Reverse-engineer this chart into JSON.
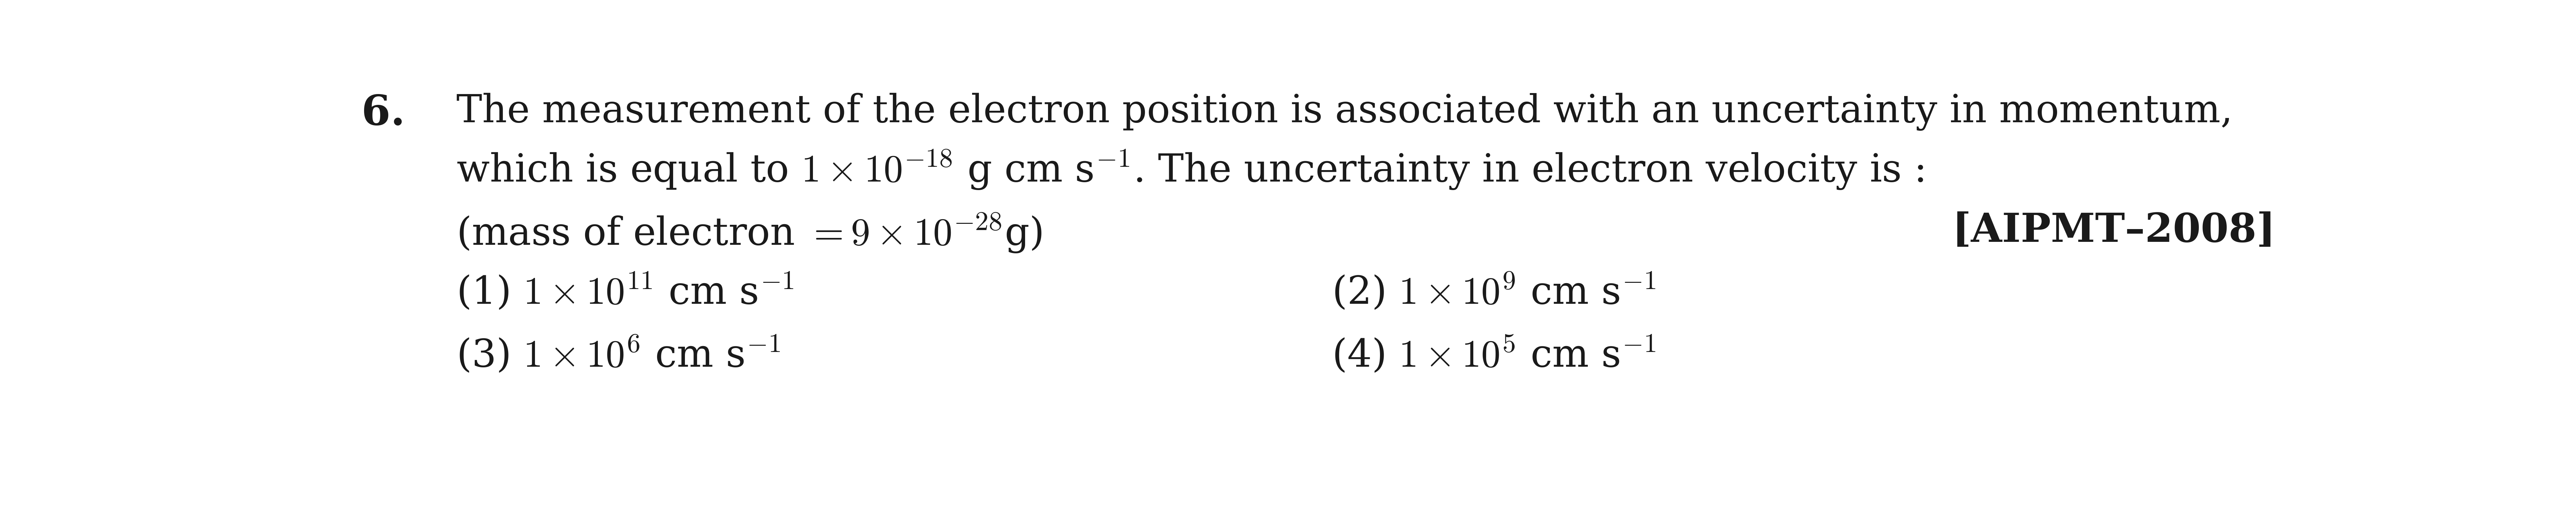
{
  "bg_color": "#ffffff",
  "text_color": "#1a1a1a",
  "question_number": "6.",
  "line1": "The measurement of the electron position is associated with an uncertainty in momentum,",
  "line2": "which is equal to $1\\times 10^{-18}$ g cm s$^{-1}$. The uncertainty in electron velocity is :",
  "line3_left": "(mass of electron $= 9\\times10^{-28}$g)",
  "line3_right": "[AIPMT–2008]",
  "opt1": "(1) $1 \\times 10^{11}$ cm s$^{-1}$",
  "opt2": "(2) $1 \\times 10^{9}$ cm s$^{-1}$",
  "opt3": "(3) $1 \\times 10^{6}$ cm s$^{-1}$",
  "opt4": "(4) $1 \\times 10^{5}$ cm s$^{-1}$",
  "font_size_main": 85,
  "font_size_number": 92,
  "font_size_bold": 88
}
